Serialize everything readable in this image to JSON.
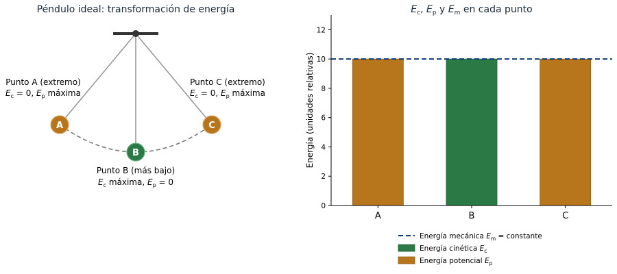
{
  "left_panel": {
    "title": "Péndulo ideal: transformación de energía",
    "point_a": {
      "letter": "A",
      "name": "Punto A (extremo)",
      "desc": "Ec = 0, Ep máxima"
    },
    "point_b": {
      "letter": "B",
      "name": "Punto B (más bajo)",
      "desc": "Ec máxima, Ep = 0"
    },
    "point_c": {
      "letter": "C",
      "name": "Punto C (extremo)",
      "desc": "Ec = 0, Ep máxima"
    }
  },
  "chart_data": {
    "type": "bar",
    "title": "Ec, Ep y Em en cada punto",
    "xlabel": "",
    "ylabel": "Energía (unidades relativas)",
    "categories": [
      "A",
      "B",
      "C"
    ],
    "series": [
      {
        "name": "Energía potencial Ep",
        "values": [
          10,
          0,
          10
        ],
        "color": "#b8761c"
      },
      {
        "name": "Energía cinética Ec",
        "values": [
          0,
          10,
          0
        ],
        "color": "#2b7a45"
      }
    ],
    "reference_line": {
      "name": "Energía mecánica Em = constante",
      "value": 10,
      "color": "#0d3b7a",
      "style": "dashed"
    },
    "ylim": [
      0,
      13
    ],
    "yticks": [
      0,
      2,
      4,
      6,
      8,
      10,
      12
    ],
    "grid": false,
    "legend_placement": "bottom"
  },
  "colors": {
    "potential": "#b8761c",
    "kinetic": "#2b7a45",
    "mechanical": "#0d3b7a",
    "rod": "#999999",
    "pivot": "#333333"
  }
}
